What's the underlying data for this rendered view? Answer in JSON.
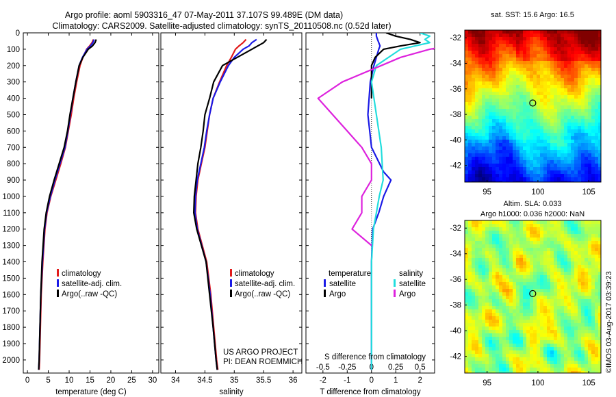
{
  "header": {
    "title": "Argo profile: aoml 5903316_47 07-May-2011 37.107S 99.489E (DM data)",
    "subtitle": "Climatology: CARS2009. Satellite-adjusted climatology: synTS_20110508.nc (0.52d later)"
  },
  "colors": {
    "climatology": "#e11b1b",
    "satellite": "#1a1ae6",
    "argo": "#000000",
    "satellite_s": "#22dddd",
    "argo_s": "#dd22dd"
  },
  "depth_ticks": [
    0,
    100,
    200,
    300,
    400,
    500,
    600,
    700,
    800,
    900,
    1000,
    1100,
    1200,
    1300,
    1400,
    1500,
    1600,
    1700,
    1800,
    1900,
    2000
  ],
  "chart_data": [
    {
      "type": "line",
      "xlabel": "temperature (deg C)",
      "xlim": [
        -1,
        31.5
      ],
      "ylim": [
        2080,
        0
      ],
      "x_ticks": [
        0,
        5,
        10,
        15,
        20,
        25,
        30
      ],
      "legend": [
        "climatology",
        "satellite-adj. clim.",
        "Argo(..raw -QC)"
      ],
      "legend_placement": "lower-center",
      "series": [
        {
          "name": "climatology",
          "depth": [
            40,
            60,
            80,
            100,
            150,
            200,
            300,
            400,
            500,
            600,
            700,
            800,
            900,
            1000,
            1100,
            1200,
            1400,
            1600,
            1800,
            2000,
            2060
          ],
          "values": [
            15.8,
            15.5,
            14.9,
            14.2,
            13.3,
            12.6,
            11.8,
            11.1,
            10.5,
            9.8,
            9.1,
            8.0,
            6.8,
            5.6,
            4.7,
            4.2,
            3.7,
            3.3,
            3.1,
            2.9,
            2.8
          ]
        },
        {
          "name": "satellite-adj. clim.",
          "depth": [
            40,
            60,
            80,
            100,
            150,
            200,
            300,
            400,
            500,
            600,
            700,
            800,
            900,
            1000,
            1100,
            1200,
            1400,
            1600,
            1800,
            2000,
            2060
          ],
          "values": [
            16.0,
            15.7,
            15.1,
            14.3,
            13.2,
            12.4,
            11.6,
            10.9,
            10.3,
            9.7,
            9.0,
            7.8,
            6.6,
            5.5,
            4.6,
            4.1,
            3.6,
            3.2,
            3.0,
            2.8,
            2.7
          ]
        },
        {
          "name": "Argo(..raw -QC)",
          "depth": [
            40,
            60,
            80,
            100,
            150,
            200,
            300,
            400,
            500,
            600,
            700,
            800,
            900,
            1000,
            1100,
            1200,
            1400,
            1600,
            1800,
            2000,
            2060
          ],
          "values": [
            16.5,
            16.2,
            15.6,
            14.6,
            13.3,
            12.4,
            11.6,
            10.9,
            10.2,
            9.6,
            8.8,
            7.6,
            6.4,
            5.3,
            4.5,
            4.0,
            3.5,
            3.2,
            3.0,
            2.8,
            2.7
          ]
        }
      ]
    },
    {
      "type": "line",
      "xlabel": "salinity",
      "xlim": [
        33.75,
        36.15
      ],
      "ylim": [
        2080,
        0
      ],
      "x_ticks": [
        34,
        34.5,
        35,
        35.5,
        36
      ],
      "legend": [
        "climatology",
        "satellite-adj. clim.",
        "Argo(..raw -QC)"
      ],
      "legend_placement": "lower-right",
      "series": [
        {
          "name": "climatology",
          "depth": [
            40,
            60,
            80,
            100,
            150,
            200,
            300,
            400,
            500,
            600,
            700,
            800,
            900,
            1000,
            1100,
            1200,
            1400,
            1600,
            1800,
            2000,
            2060
          ],
          "values": [
            35.2,
            35.15,
            35.08,
            35.02,
            34.95,
            34.87,
            34.75,
            34.64,
            34.58,
            34.54,
            34.5,
            34.44,
            34.38,
            34.35,
            34.34,
            34.38,
            34.53,
            34.6,
            34.65,
            34.7,
            34.72
          ]
        },
        {
          "name": "satellite-adj. clim.",
          "depth": [
            40,
            60,
            80,
            100,
            150,
            200,
            300,
            400,
            500,
            600,
            700,
            800,
            900,
            1000,
            1100,
            1200,
            1400,
            1600,
            1800,
            2000,
            2060
          ],
          "values": [
            35.38,
            35.3,
            35.25,
            35.15,
            35.0,
            34.9,
            34.76,
            34.64,
            34.58,
            34.53,
            34.49,
            34.43,
            34.37,
            34.34,
            34.33,
            34.37,
            34.52,
            34.59,
            34.64,
            34.69,
            34.71
          ]
        },
        {
          "name": "Argo(..raw -QC)",
          "depth": [
            40,
            60,
            80,
            100,
            150,
            200,
            300,
            400,
            500,
            600,
            700,
            800,
            900,
            1000,
            1100,
            1200,
            1400,
            1600,
            1800,
            2000,
            2060
          ],
          "values": [
            35.55,
            35.5,
            35.4,
            35.3,
            35.05,
            34.8,
            34.65,
            34.58,
            34.5,
            34.47,
            34.43,
            34.38,
            34.35,
            34.32,
            34.31,
            34.36,
            34.52,
            34.58,
            34.64,
            34.69,
            34.71
          ]
        }
      ]
    },
    {
      "type": "line",
      "xlabel": "T difference from climatology",
      "x2label": "S difference from climatology",
      "xlim": [
        -2.7,
        2.6
      ],
      "x2lim": [
        -0.675,
        0.65
      ],
      "ylim": [
        2080,
        0
      ],
      "x_ticks": [
        -2,
        -1,
        0,
        1,
        2
      ],
      "x2_ticks": [
        -0.5,
        -0.25,
        0,
        0.25,
        0.5
      ],
      "x2_tick_labels": [
        "-0.5",
        "-0.25",
        "0",
        "0.25",
        "0.5"
      ],
      "legend_headers": [
        "temperature",
        "salinity"
      ],
      "legend": [
        "satellite",
        "Argo",
        "satellite",
        "Argo"
      ],
      "legend_placement": "lower",
      "series": [
        {
          "name": "satellite",
          "depth": [
            0,
            20,
            40,
            60,
            80,
            100,
            200,
            300,
            500,
            700,
            850,
            900,
            1000,
            1100,
            1200,
            1400,
            1600,
            1800,
            2000,
            2060
          ],
          "values": [
            0.2,
            0.2,
            0.25,
            0.3,
            0.35,
            0.3,
            0.1,
            -0.05,
            -0.15,
            0.0,
            0.5,
            0.8,
            0.5,
            0.3,
            0.05,
            0.0,
            0.0,
            0.0,
            0.0,
            0.0
          ]
        },
        {
          "name": "Argo",
          "depth": [
            0,
            20,
            40,
            60,
            80,
            100,
            150,
            200,
            300,
            400
          ],
          "values": [
            0.6,
            1.0,
            1.6,
            2.0,
            1.2,
            0.5,
            0.15,
            0.0,
            0.0,
            0.0
          ]
        },
        {
          "name": "satellite",
          "depth": [
            0,
            20,
            40,
            60,
            80,
            100,
            200,
            300,
            500,
            700,
            900,
            1000,
            1100,
            1200,
            1400,
            1600,
            1800,
            2000,
            2060
          ],
          "values": [
            0.5,
            0.6,
            0.55,
            0.6,
            0.45,
            0.3,
            0.05,
            0.0,
            0.05,
            0.1,
            0.12,
            0.08,
            0.05,
            0.02,
            0.0,
            0.0,
            0.0,
            0.0,
            0.0
          ]
        },
        {
          "name": "Argo",
          "depth": [
            20,
            40,
            60,
            80,
            100,
            150,
            200,
            300,
            400,
            500,
            600,
            700,
            800,
            900,
            1000,
            1100,
            1200,
            1300
          ],
          "values": [
            1.0,
            1.6,
            1.3,
            0.8,
            0.6,
            0.3,
            0.1,
            -0.3,
            -0.55,
            -0.4,
            -0.25,
            -0.1,
            0.0,
            0.0,
            -0.1,
            -0.1,
            -0.2,
            0.0
          ]
        }
      ]
    },
    {
      "type": "heatmap",
      "title": "sat. SST: 15.6  Argo: 16.5",
      "x_ticks": [
        95,
        100,
        105
      ],
      "y_ticks": [
        -32,
        -34,
        -36,
        -38,
        -40,
        -42
      ],
      "xlim": [
        92.8,
        106.2
      ],
      "ylim": [
        -43.3,
        -31.4
      ],
      "marker": {
        "lon": 99.489,
        "lat": -37.107
      }
    },
    {
      "type": "heatmap",
      "title": "Altim. SLA: 0.033",
      "subtitle": "Argo h1000: 0.036 h2000: NaN",
      "x_ticks": [
        95,
        100,
        105
      ],
      "y_ticks": [
        -32,
        -34,
        -36,
        -38,
        -40,
        -42
      ],
      "xlim": [
        92.8,
        106.2
      ],
      "ylim": [
        -43.3,
        -31.4
      ],
      "marker": {
        "lon": 99.489,
        "lat": -37.107
      }
    }
  ],
  "annotations": {
    "project_line1": "US ARGO PROJECT",
    "project_line2": "PI: DEAN ROEMMICH",
    "watermark": "©IMOS 03-Aug-2017 03:39:23"
  }
}
